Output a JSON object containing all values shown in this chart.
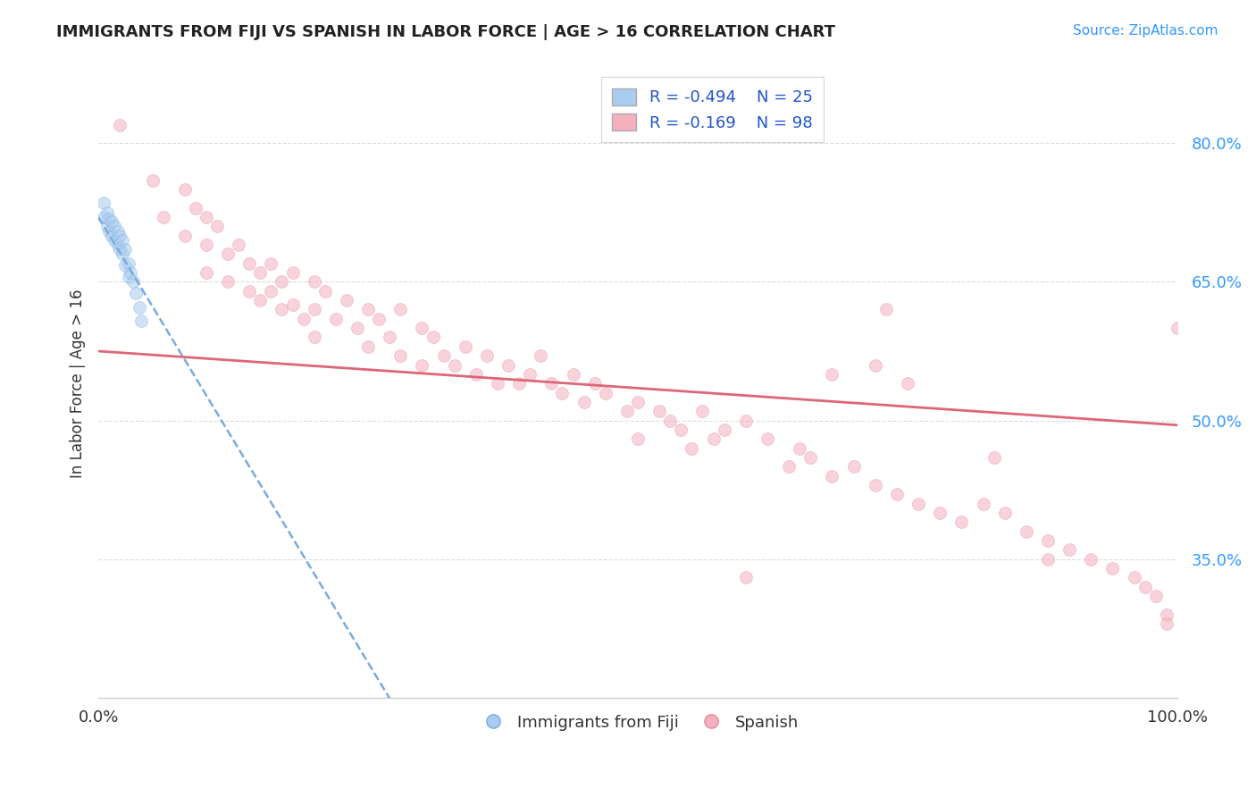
{
  "title": "IMMIGRANTS FROM FIJI VS SPANISH IN LABOR FORCE | AGE > 16 CORRELATION CHART",
  "source": "Source: ZipAtlas.com",
  "ylabel": "In Labor Force | Age > 16",
  "yticks": [
    0.35,
    0.5,
    0.65,
    0.8
  ],
  "ytick_labels": [
    "35.0%",
    "50.0%",
    "65.0%",
    "80.0%"
  ],
  "xlim": [
    0.0,
    1.0
  ],
  "ylim": [
    0.2,
    0.88
  ],
  "fiji_color": "#aaccf0",
  "fiji_edge_color": "#7aaade",
  "spanish_color": "#f5b0c0",
  "spanish_edge_color": "#e88898",
  "fiji_R": -0.494,
  "fiji_N": 25,
  "spanish_R": -0.169,
  "spanish_N": 98,
  "fiji_line_color": "#7aaadd",
  "spanish_line_color": "#dd6677",
  "grid_color": "#dddddd",
  "fiji_scatter_x": [
    0.005,
    0.005,
    0.008,
    0.008,
    0.01,
    0.01,
    0.012,
    0.012,
    0.015,
    0.015,
    0.018,
    0.018,
    0.02,
    0.02,
    0.022,
    0.022,
    0.025,
    0.025,
    0.028,
    0.028,
    0.03,
    0.032,
    0.035,
    0.038,
    0.04
  ],
  "fiji_scatter_y": [
    0.735,
    0.72,
    0.725,
    0.71,
    0.718,
    0.705,
    0.715,
    0.7,
    0.71,
    0.695,
    0.705,
    0.69,
    0.7,
    0.685,
    0.695,
    0.68,
    0.685,
    0.668,
    0.67,
    0.655,
    0.66,
    0.65,
    0.638,
    0.622,
    0.608
  ],
  "spanish_scatter_x": [
    0.02,
    0.05,
    0.06,
    0.08,
    0.08,
    0.09,
    0.1,
    0.1,
    0.1,
    0.11,
    0.12,
    0.12,
    0.13,
    0.14,
    0.14,
    0.15,
    0.15,
    0.16,
    0.16,
    0.17,
    0.17,
    0.18,
    0.18,
    0.19,
    0.2,
    0.2,
    0.2,
    0.21,
    0.22,
    0.23,
    0.24,
    0.25,
    0.25,
    0.26,
    0.27,
    0.28,
    0.28,
    0.3,
    0.3,
    0.31,
    0.32,
    0.33,
    0.34,
    0.35,
    0.36,
    0.37,
    0.38,
    0.39,
    0.4,
    0.41,
    0.42,
    0.43,
    0.44,
    0.45,
    0.46,
    0.47,
    0.49,
    0.5,
    0.52,
    0.53,
    0.54,
    0.56,
    0.57,
    0.58,
    0.6,
    0.62,
    0.65,
    0.66,
    0.68,
    0.7,
    0.72,
    0.74,
    0.76,
    0.78,
    0.8,
    0.82,
    0.84,
    0.86,
    0.88,
    0.9,
    0.92,
    0.94,
    0.96,
    0.97,
    0.98,
    0.99,
    0.99,
    1.0,
    0.72,
    0.83,
    0.75,
    0.88,
    0.6,
    0.64,
    0.68,
    0.73,
    0.5,
    0.55
  ],
  "spanish_scatter_y": [
    0.82,
    0.76,
    0.72,
    0.75,
    0.7,
    0.73,
    0.72,
    0.69,
    0.66,
    0.71,
    0.68,
    0.65,
    0.69,
    0.67,
    0.64,
    0.66,
    0.63,
    0.67,
    0.64,
    0.65,
    0.62,
    0.66,
    0.625,
    0.61,
    0.65,
    0.62,
    0.59,
    0.64,
    0.61,
    0.63,
    0.6,
    0.62,
    0.58,
    0.61,
    0.59,
    0.62,
    0.57,
    0.6,
    0.56,
    0.59,
    0.57,
    0.56,
    0.58,
    0.55,
    0.57,
    0.54,
    0.56,
    0.54,
    0.55,
    0.57,
    0.54,
    0.53,
    0.55,
    0.52,
    0.54,
    0.53,
    0.51,
    0.52,
    0.51,
    0.5,
    0.49,
    0.51,
    0.48,
    0.49,
    0.5,
    0.48,
    0.47,
    0.46,
    0.44,
    0.45,
    0.43,
    0.42,
    0.41,
    0.4,
    0.39,
    0.41,
    0.4,
    0.38,
    0.37,
    0.36,
    0.35,
    0.34,
    0.33,
    0.32,
    0.31,
    0.29,
    0.28,
    0.6,
    0.56,
    0.46,
    0.54,
    0.35,
    0.33,
    0.45,
    0.55,
    0.62,
    0.48,
    0.47
  ],
  "background_color": "#ffffff",
  "marker_size": 100,
  "marker_alpha": 0.55,
  "legend_fontsize": 13,
  "title_fontsize": 13,
  "source_fontsize": 11,
  "fiji_line_x_start": 0.0,
  "fiji_line_x_end": 0.28,
  "fiji_line_y_start": 0.72,
  "fiji_line_y_end": 0.18,
  "spanish_line_x_start": 0.0,
  "spanish_line_x_end": 1.0,
  "spanish_line_y_start": 0.575,
  "spanish_line_y_end": 0.495
}
